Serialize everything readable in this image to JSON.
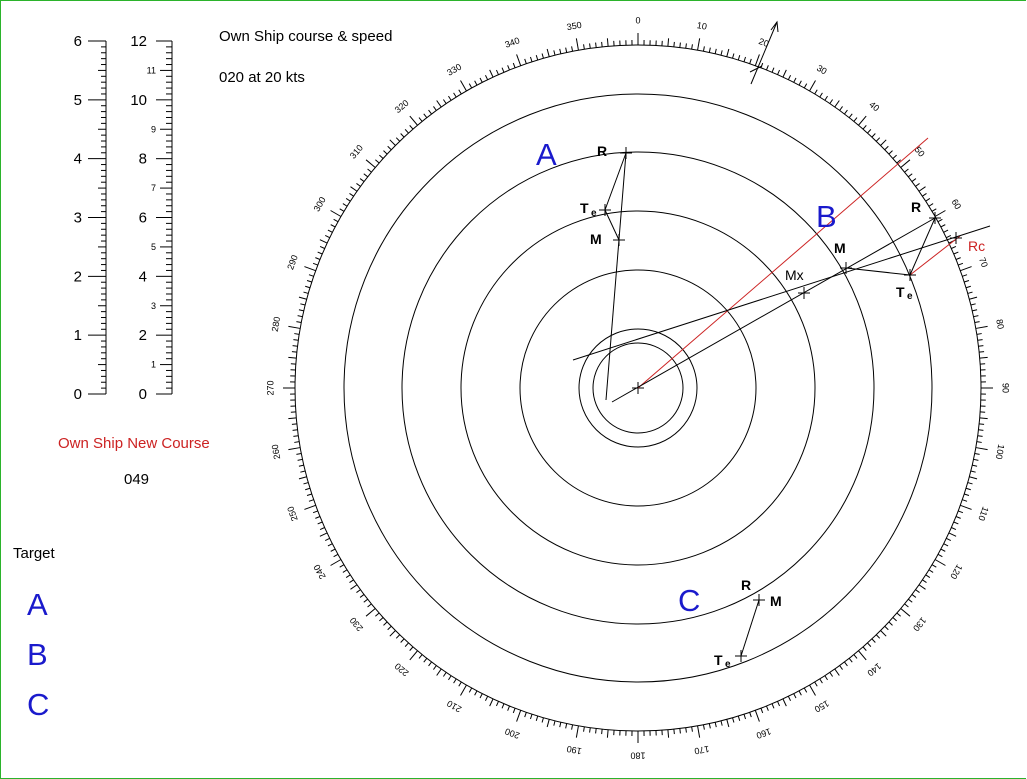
{
  "own_ship": {
    "title": "Own Ship course & speed",
    "course_speed": "020 at 20 kts",
    "new_course_label": "Own Ship New Course",
    "new_course_value": "049"
  },
  "target_panel": {
    "label": "Target",
    "items": [
      "A",
      "B",
      "C"
    ]
  },
  "scale_bars": {
    "left": {
      "min": 0,
      "max": 6,
      "labels": [
        "0",
        "1",
        "2",
        "3",
        "4",
        "5",
        "6"
      ]
    },
    "right": {
      "min": 0,
      "max": 12,
      "major_labels": [
        "0",
        "2",
        "4",
        "6",
        "8",
        "10",
        "12"
      ],
      "minor_labels": [
        "1",
        "3",
        "5",
        "7",
        "9",
        "11"
      ]
    }
  },
  "plot": {
    "bearing_labels": [
      "0",
      "10",
      "20",
      "30",
      "40",
      "50",
      "60",
      "70",
      "80",
      "90",
      "100",
      "110",
      "120",
      "130",
      "140",
      "150",
      "160",
      "170",
      "180",
      "190",
      "200",
      "210",
      "220",
      "230",
      "240",
      "250",
      "260",
      "270",
      "280",
      "290",
      "300",
      "310",
      "320",
      "330",
      "340",
      "350"
    ],
    "targets": [
      {
        "name": "A",
        "points": {
          "R": "R",
          "Te": "Te",
          "M": "M"
        }
      },
      {
        "name": "B",
        "points": {
          "R": "R",
          "Te": "Te",
          "M": "M",
          "Mx": "Mx",
          "Rc": "Rc"
        }
      },
      {
        "name": "C",
        "points": {
          "R": "R",
          "Te": "Te",
          "M": "M"
        }
      }
    ]
  },
  "colors": {
    "border": "#2bb32b",
    "target_letters": "#1a1acc",
    "new_course": "#cc2222"
  }
}
